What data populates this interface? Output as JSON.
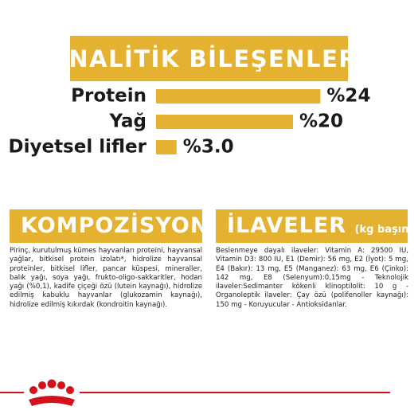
{
  "chart_data": {
    "type": "bar",
    "title": "ANALİTİK BİLEŞENLERİ",
    "categories": [
      "Protein",
      "Yağ",
      "Diyetsel lifler"
    ],
    "values": [
      24,
      20,
      3.0
    ],
    "value_labels": [
      "%24",
      "%20",
      "%3.0"
    ],
    "color": "#e5b131"
  },
  "sections": [
    {
      "title": "KOMPOZİSYON",
      "text": "Pirinç, kurutulmuş kümes hayvanları proteini, hayvansal yağlar, bitkisel protein izolatı*, hidrolize hayvansal proteinler, bitkisel lifler, pancar küspesi, mineraller, balık yağı, soya yağı, frukto-oligo-sakkaritler, hodan yağı (%0,1), kadife çiçeği özü (lutein kaynağı), hidrolize edilmiş kabuklu hayvanlar (glukozamin kaynağı), hidrolize edilmiş kıkırdak (kondroitin kaynağı)."
    },
    {
      "title": "İLAVELER",
      "subtitle": "(kg başına)",
      "text": "Beslenmeye dayalı ilaveler: Vitamin A: 29500 IU, Vitamin D3: 800 IU, E1 (Demir): 56 mg, E2 (İyot): 5 mg, E4 (Bakır): 13 mg, E5 (Manganez): 63 mg, E6 (Çinko): 142 mg, E8 (Selenyum):0,15mg - Teknolojik ilaveler:Sedimanter kökenli klinoptilolit: 10 g - Organoleptik ilaveler: Çay özü (polifenoller kaynağı): 150 mg - Koruyucular - Antioksidanlar."
    }
  ]
}
